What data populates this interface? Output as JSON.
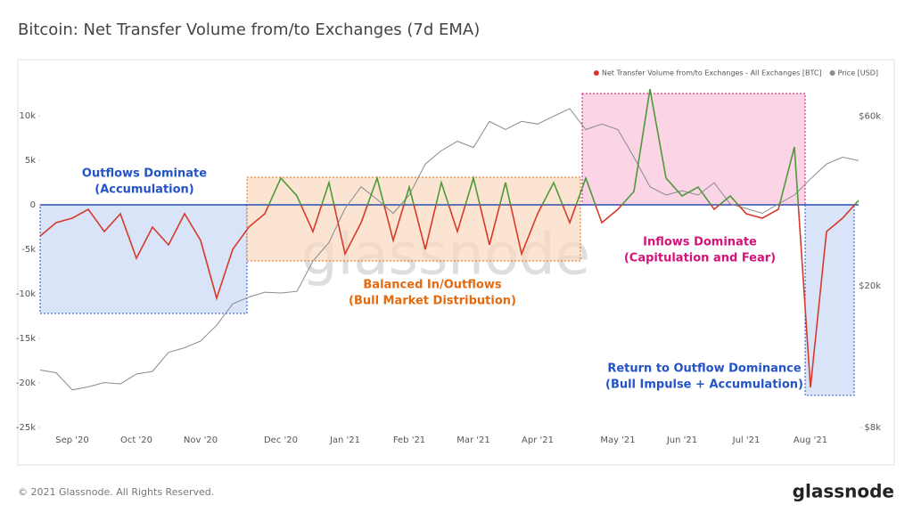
{
  "chart_data": {
    "type": "line",
    "title": "Bitcoin: Net Transfer Volume from/to Exchanges (7d EMA)",
    "categories": [
      null,
      null,
      "Sep '20",
      null,
      null,
      null,
      "Oct '20",
      null,
      null,
      null,
      "Nov '20",
      null,
      null,
      null,
      null,
      "Dec '20",
      null,
      null,
      null,
      "Jan '21",
      null,
      null,
      null,
      "Feb '21",
      null,
      null,
      null,
      "Mar '21",
      null,
      null,
      null,
      "Apr '21",
      null,
      null,
      null,
      null,
      "May '21",
      null,
      null,
      null,
      "Jun '21",
      null,
      null,
      null,
      "Jul '21",
      null,
      null,
      null,
      "Aug '21",
      null,
      null,
      null
    ],
    "series": [
      {
        "name": "Net Transfer Volume from/to Exchanges - All Exchanges [BTC]",
        "color": "#d63a2a",
        "positive_color": "#4c9a3a",
        "values": [
          -3500,
          -2000,
          -1500,
          -500,
          -3000,
          -1000,
          -6000,
          -2500,
          -4500,
          -1000,
          -4000,
          -10500,
          -5000,
          -2500,
          -1000,
          3000,
          1000,
          -3000,
          2500,
          -5500,
          -2000,
          3000,
          -4000,
          2000,
          -5000,
          2500,
          -3000,
          3000,
          -4500,
          2500,
          -5500,
          -1000,
          2500,
          -2000,
          3000,
          -2000,
          -500,
          1500,
          13000,
          3000,
          1000,
          2000,
          -500,
          1000,
          -1000,
          -1500,
          -500,
          6500,
          -20500,
          -3000,
          -1500,
          500
        ]
      },
      {
        "name": "Price [USD]",
        "color": "#8a8a8a",
        "axis": "y2",
        "values": [
          11600,
          11400,
          10200,
          10400,
          10700,
          10600,
          11300,
          11500,
          13000,
          13400,
          14000,
          15500,
          17800,
          18600,
          19200,
          19100,
          19300,
          23500,
          26500,
          33000,
          38000,
          35000,
          32000,
          36000,
          44000,
          48000,
          51000,
          49000,
          58000,
          55000,
          58000,
          57000,
          60000,
          63000,
          55000,
          57000,
          55000,
          46000,
          38000,
          36000,
          37000,
          36000,
          39000,
          34000,
          33000,
          32000,
          34000,
          36000,
          40000,
          44000,
          46000,
          45000
        ]
      }
    ],
    "ylim": [
      -26000,
      16000
    ],
    "yticks": [
      {
        "value": 10000,
        "label": "10k"
      },
      {
        "value": 5000,
        "label": "5k"
      },
      0,
      {
        "value": -5000,
        "label": "-5k"
      },
      {
        "value": -10000,
        "label": "-10k"
      },
      {
        "value": -15000,
        "label": "-15k"
      },
      {
        "value": -20000,
        "label": "-20k"
      },
      {
        "value": -25000,
        "label": "-25k"
      }
    ],
    "y2lim": [
      7550,
      85000
    ],
    "y2log": true,
    "y2ticks": [
      {
        "value": 60000,
        "label": "$60k"
      },
      {
        "value": 20000,
        "label": "$20k"
      },
      {
        "value": 8000,
        "label": "$8k"
      }
    ],
    "legend": "top-right",
    "annotations": [
      {
        "lines": [
          "Outflows Dominate",
          "(Accumulation)"
        ],
        "color": "#2353c6"
      },
      {
        "lines": [
          "Balanced In/Outflows",
          "(Bull Market Distribution)"
        ],
        "color": "#e46a10"
      },
      {
        "lines": [
          "Inflows Dominate",
          "(Capitulation and Fear)"
        ],
        "color": "#d4127a"
      },
      {
        "lines": [
          "Return to Outflow Dominance",
          "(Bull Impulse + Accumulation)"
        ],
        "color": "#2353c6"
      }
    ],
    "watermark": "glassnode",
    "footer": "© 2021 Glassnode. All Rights Reserved.",
    "logo": "glassnode"
  }
}
